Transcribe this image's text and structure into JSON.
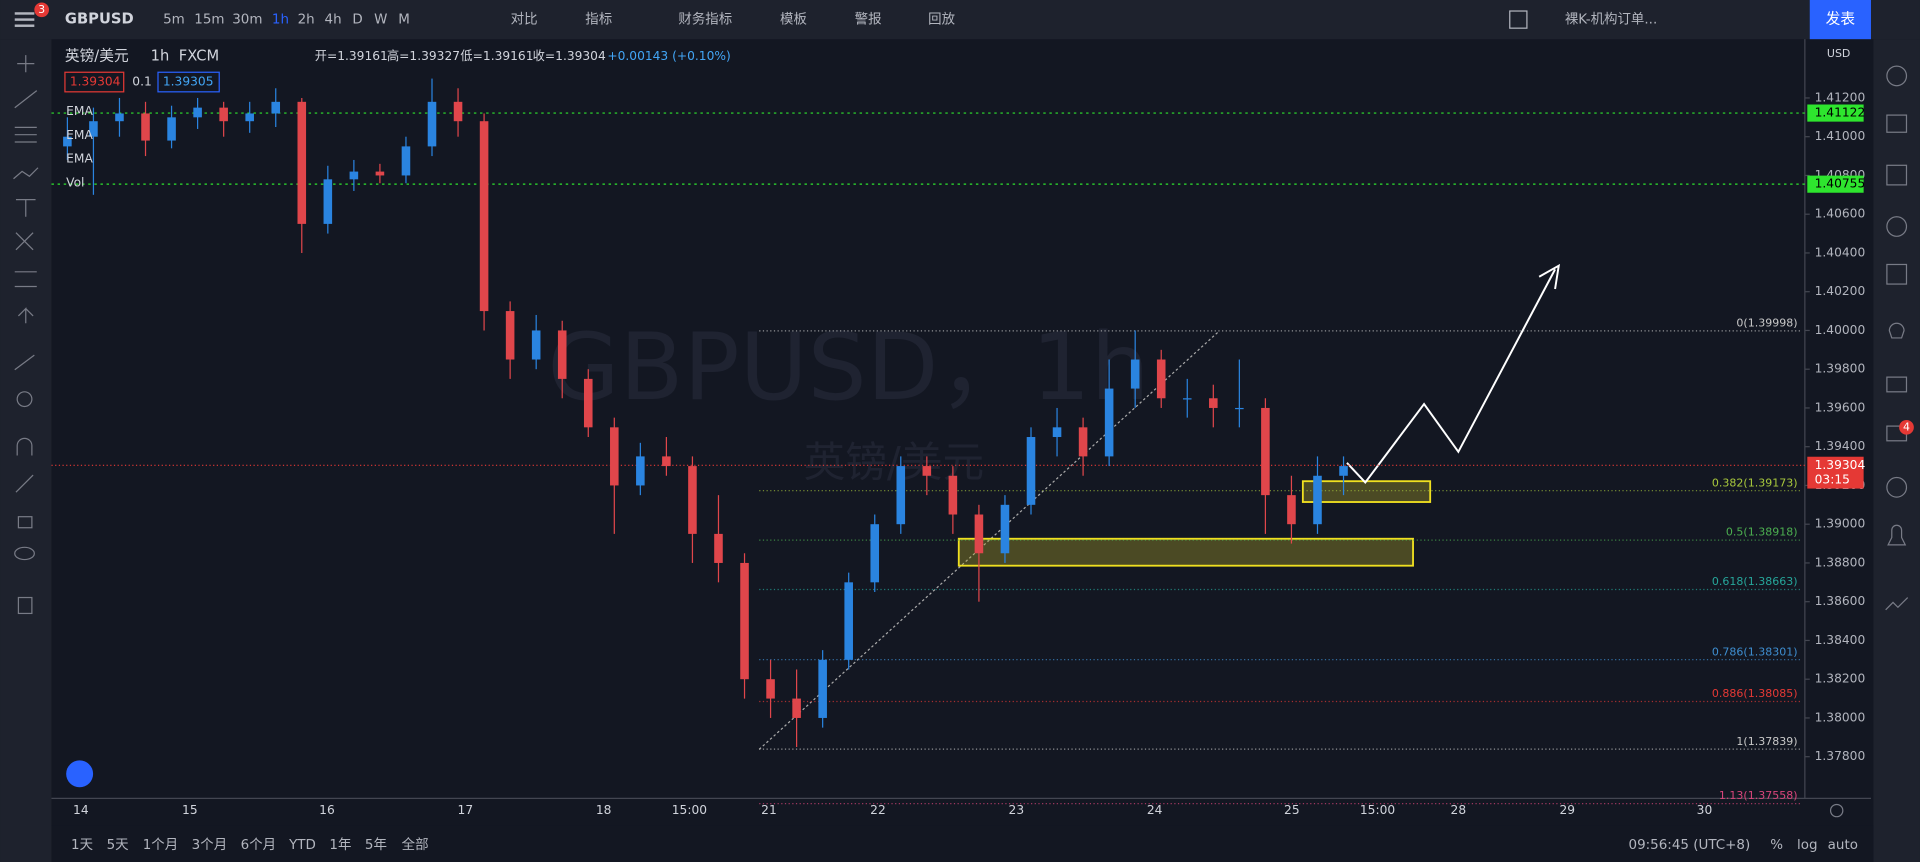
{
  "toolbar": {
    "badge": "3",
    "symbol": "GBPUSD",
    "intervals": [
      "5m",
      "15m",
      "30m",
      "1h",
      "2h",
      "4h",
      "D",
      "W",
      "M"
    ],
    "buttons": [
      "对比",
      "指标",
      "财务指标",
      "模板",
      "警报",
      "回放"
    ],
    "layout_name": "裸K-机构订单...",
    "publish": "发表"
  },
  "legend": {
    "pair": "英镑/美元",
    "interval": "1h",
    "source": "FXCM",
    "ohlc": [
      "开=1.39161",
      "高=1.39327",
      "低=1.39161",
      "收=1.39304",
      "+0.00143 (+0.10%)"
    ],
    "price_tags": [
      "1.39304",
      "0.1",
      "1.39305"
    ],
    "indicators": [
      "EMA",
      "EMA",
      "EMA",
      "Vol"
    ]
  },
  "chart": {
    "watermark": "GBPUSD，1h",
    "watermark_sub": "英镑/美元",
    "currency": "USD",
    "price_ticks": [
      {
        "value": 1.378,
        "label": "1.37800"
      },
      {
        "value": 1.38,
        "label": "1.38000"
      },
      {
        "value": 1.382,
        "label": "1.38200"
      },
      {
        "value": 1.384,
        "label": "1.38400"
      },
      {
        "value": 1.386,
        "label": "1.38600"
      },
      {
        "value": 1.388,
        "label": "1.38800"
      },
      {
        "value": 1.39,
        "label": "1.39000"
      },
      {
        "value": 1.392,
        "label": "1.39200"
      },
      {
        "value": 1.394,
        "label": "1.39400"
      },
      {
        "value": 1.396,
        "label": "1.39600"
      },
      {
        "value": 1.398,
        "label": "1.39800"
      },
      {
        "value": 1.4,
        "label": "1.40000"
      },
      {
        "value": 1.402,
        "label": "1.40200"
      },
      {
        "value": 1.404,
        "label": "1.40400"
      },
      {
        "value": 1.406,
        "label": "1.40600"
      },
      {
        "value": 1.408,
        "label": "1.40800"
      },
      {
        "value": 1.41,
        "label": "1.41000"
      },
      {
        "value": 1.412,
        "label": "1.41200"
      }
    ],
    "time_labels": [
      "14",
      "15",
      "16",
      "17",
      "18",
      "15:00",
      "21",
      "22",
      "23",
      "24",
      "25",
      "15:00",
      "28",
      "29",
      "30"
    ],
    "levels": [
      {
        "value": 1.41122,
        "label": "1.41122"
      },
      {
        "value": 1.40755,
        "label": "1.40755"
      }
    ],
    "last_price": {
      "value": 1.39304,
      "label": "1.39304"
    },
    "countdown": "03:15",
    "fib": [
      {
        "value": 1.39998,
        "label": "0(1.39998)",
        "color": "#c8c8c8"
      },
      {
        "value": 1.39173,
        "label": "0.382(1.39173)",
        "color": "#a8c83c"
      },
      {
        "value": 1.38918,
        "label": "0.5(1.38918)",
        "color": "#4caf50"
      },
      {
        "value": 1.38663,
        "label": "0.618(1.38663)",
        "color": "#26a69a"
      },
      {
        "value": 1.38301,
        "label": "0.786(1.38301)",
        "color": "#3e8ed0"
      },
      {
        "value": 1.38085,
        "label": "0.886(1.38085)",
        "color": "#e53935"
      },
      {
        "value": 1.37839,
        "label": "1(1.37839)",
        "color": "#c8c8c8"
      },
      {
        "value": 1.37558,
        "label": "1.13(1.37558)",
        "color": "#d8457a"
      }
    ],
    "candles": {
      "open": [
        1.4095,
        1.41,
        1.4108,
        1.4112,
        1.4098,
        1.411,
        1.4115,
        1.4108,
        1.4112,
        1.4118,
        1.4055,
        1.4078,
        1.4082,
        1.408,
        1.4095,
        1.4118,
        1.4108,
        1.401,
        1.3985,
        1.4,
        1.3975,
        1.395,
        1.392,
        1.3935,
        1.393,
        1.3895,
        1.388,
        1.382,
        1.381,
        1.38,
        1.383,
        1.387,
        1.39,
        1.393,
        1.3925,
        1.3905,
        1.3885,
        1.391,
        1.3945,
        1.395,
        1.3935,
        1.397,
        1.3985,
        1.3965,
        1.3965,
        1.396,
        1.396,
        1.3915,
        1.39,
        1.3925
      ],
      "high": [
        1.411,
        1.4115,
        1.412,
        1.4118,
        1.4116,
        1.412,
        1.4118,
        1.4118,
        1.4125,
        1.412,
        1.4085,
        1.4088,
        1.4086,
        1.41,
        1.413,
        1.4125,
        1.4112,
        1.4015,
        1.4008,
        1.4005,
        1.398,
        1.3955,
        1.3942,
        1.3945,
        1.3935,
        1.3915,
        1.3885,
        1.383,
        1.3825,
        1.3835,
        1.3875,
        1.3905,
        1.3935,
        1.3935,
        1.393,
        1.391,
        1.3915,
        1.395,
        1.396,
        1.3955,
        1.3985,
        1.4,
        1.399,
        1.3975,
        1.3972,
        1.3985,
        1.3965,
        1.3925,
        1.3935,
        1.3935
      ],
      "low": [
        1.4088,
        1.407,
        1.41,
        1.409,
        1.4094,
        1.4104,
        1.41,
        1.4102,
        1.4105,
        1.404,
        1.405,
        1.4072,
        1.4076,
        1.4076,
        1.409,
        1.41,
        1.4,
        1.3975,
        1.398,
        1.3965,
        1.3945,
        1.3895,
        1.3915,
        1.3925,
        1.388,
        1.387,
        1.381,
        1.38,
        1.3785,
        1.3795,
        1.3825,
        1.3865,
        1.3895,
        1.3915,
        1.3895,
        1.386,
        1.388,
        1.3905,
        1.3935,
        1.3925,
        1.393,
        1.396,
        1.396,
        1.3955,
        1.395,
        1.395,
        1.3895,
        1.389,
        1.3895,
        1.3915
      ],
      "close": [
        1.41,
        1.4108,
        1.4112,
        1.4098,
        1.411,
        1.4115,
        1.4108,
        1.4112,
        1.4118,
        1.4055,
        1.4078,
        1.4082,
        1.408,
        1.4095,
        1.4118,
        1.4108,
        1.401,
        1.3985,
        1.4,
        1.3975,
        1.395,
        1.392,
        1.3935,
        1.393,
        1.3895,
        1.388,
        1.382,
        1.381,
        1.38,
        1.383,
        1.387,
        1.39,
        1.393,
        1.3925,
        1.3905,
        1.3885,
        1.391,
        1.3945,
        1.395,
        1.3935,
        1.397,
        1.3985,
        1.3965,
        1.3965,
        1.396,
        1.396,
        1.3915,
        1.39,
        1.3925,
        1.393
      ]
    }
  },
  "bottom": {
    "ranges": [
      "1天",
      "5天",
      "1个月",
      "3个月",
      "6个月",
      "YTD",
      "1年",
      "5年",
      "全部"
    ],
    "clock": "09:56:45 (UTC+8)",
    "scale_buttons": [
      "%",
      "log",
      "auto"
    ]
  },
  "side": {
    "notifications": "4"
  }
}
